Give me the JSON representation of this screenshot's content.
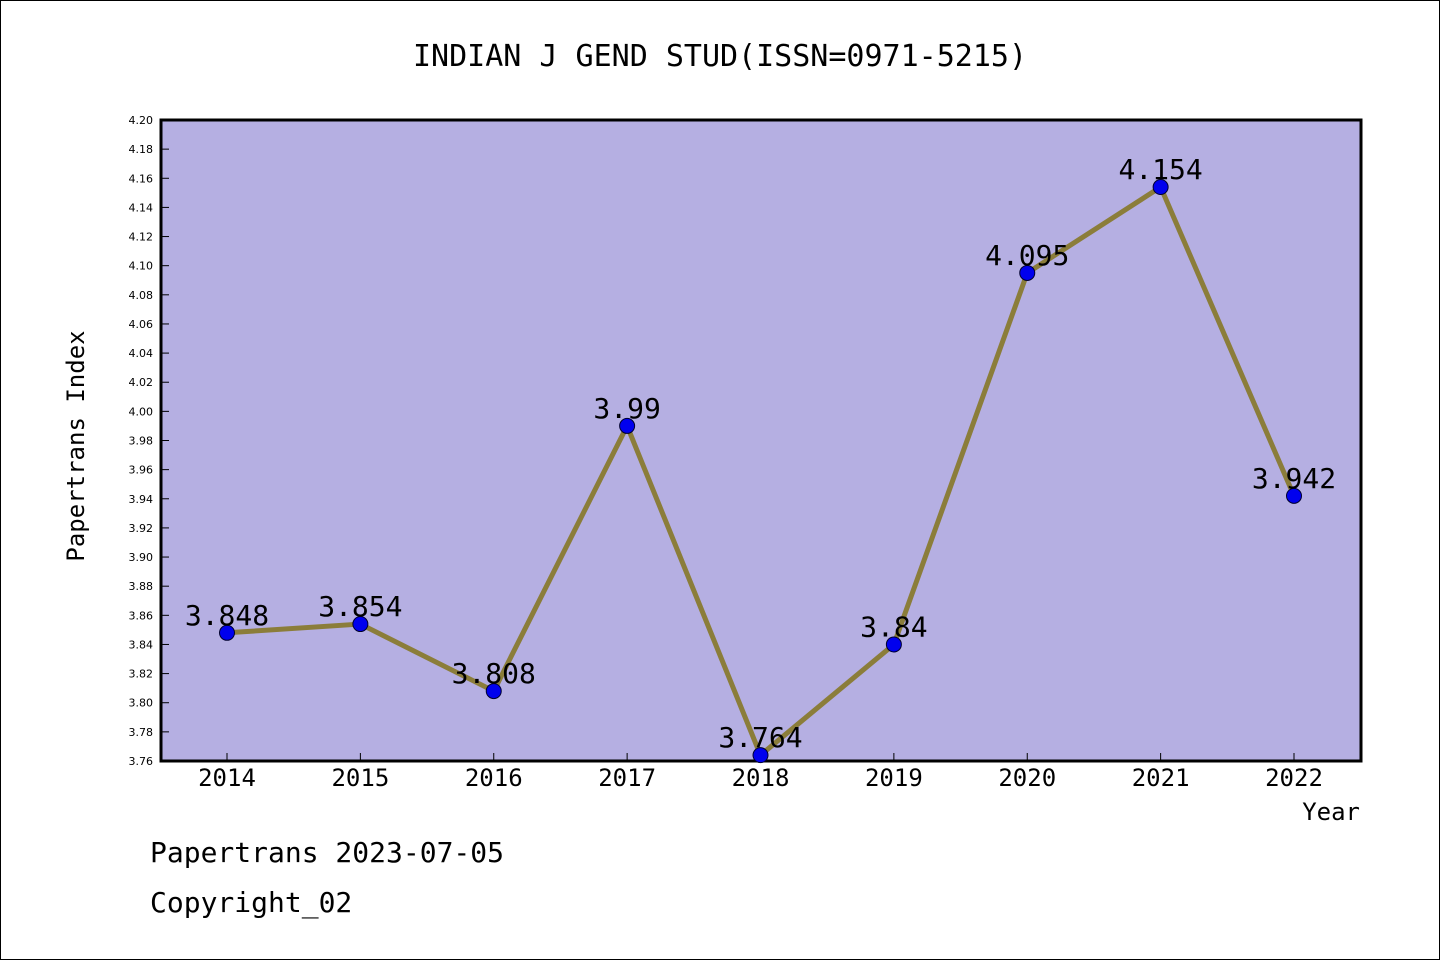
{
  "chart_data": {
    "type": "line",
    "title": "INDIAN J GEND STUD(ISSN=0971-5215)",
    "xlabel": "Year",
    "ylabel": "Papertrans Index",
    "categories": [
      "2014",
      "2015",
      "2016",
      "2017",
      "2018",
      "2019",
      "2020",
      "2021",
      "2022"
    ],
    "values": [
      3.848,
      3.854,
      3.808,
      3.99,
      3.764,
      3.84,
      4.095,
      4.154,
      3.942
    ],
    "data_labels": [
      "3.848",
      "3.854",
      "3.808",
      "3.99",
      "3.764",
      "3.84",
      "4.095",
      "4.154",
      "3.942"
    ],
    "ylim": [
      3.76,
      4.2
    ],
    "ytick_step": 0.02,
    "grid": false,
    "colors": {
      "plot_background": "#b5afe2",
      "line": "#8b7d3a",
      "marker": "#0000ee"
    }
  },
  "footer": {
    "line1": "Papertrans 2023-07-05",
    "line2": "Copyright_02"
  }
}
